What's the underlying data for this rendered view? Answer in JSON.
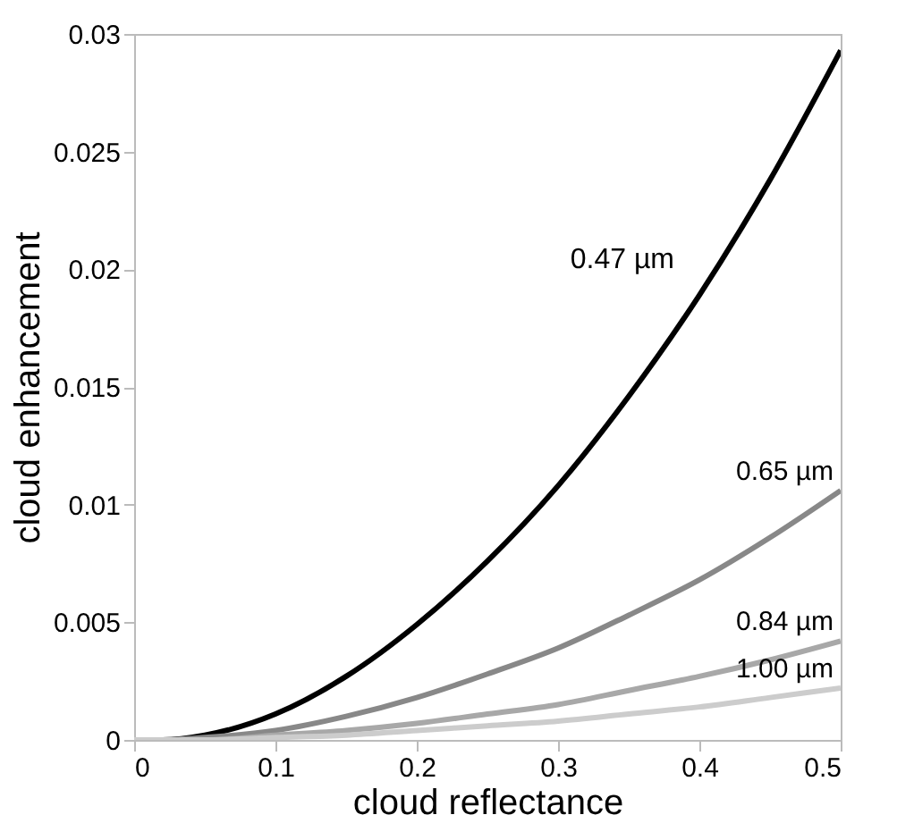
{
  "chart_data": {
    "type": "line",
    "xlabel": "cloud reflectance",
    "ylabel": "cloud enhancement",
    "x": [
      0,
      0.02,
      0.05,
      0.1,
      0.15,
      0.2,
      0.25,
      0.3,
      0.35,
      0.4,
      0.45,
      0.5
    ],
    "series": [
      {
        "name": "0.47  µm",
        "color": "#000000",
        "values": [
          0,
          0,
          0.0002,
          0.0011,
          0.0027,
          0.0049,
          0.0076,
          0.0108,
          0.0146,
          0.0189,
          0.0238,
          0.0293
        ]
      },
      {
        "name": "0.65  µm",
        "color": "#888888",
        "values": [
          0,
          0,
          0.0001,
          0.0004,
          0.001,
          0.0018,
          0.0028,
          0.0039,
          0.0053,
          0.0068,
          0.0086,
          0.0106
        ]
      },
      {
        "name": "0.84  µm",
        "color": "#a8a8a8",
        "values": [
          0,
          0,
          0,
          0.0002,
          0.0004,
          0.0007,
          0.0011,
          0.0015,
          0.0021,
          0.0027,
          0.0034,
          0.0042
        ]
      },
      {
        "name": "1.00  µm",
        "color": "#cccccc",
        "values": [
          0,
          0,
          0,
          0.0001,
          0.0002,
          0.0004,
          0.0006,
          0.0008,
          0.0011,
          0.0014,
          0.0018,
          0.0022
        ]
      }
    ],
    "xlim": [
      0,
      0.5
    ],
    "xticks": [
      0,
      0.1,
      0.2,
      0.3,
      0.4,
      0.5
    ],
    "ylim": [
      0,
      0.03
    ],
    "yticks": [
      0,
      0.005,
      0.01,
      0.015,
      0.02,
      0.025,
      0.03
    ],
    "grid": false,
    "marker": "none",
    "line_style": "solid"
  }
}
